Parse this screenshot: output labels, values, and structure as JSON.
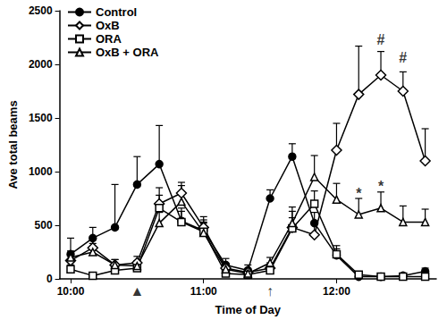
{
  "chart_data": {
    "type": "line",
    "x_label": "Time of Day",
    "y_label": "Ave total beams",
    "x": [
      600,
      610,
      620,
      630,
      640,
      650,
      660,
      670,
      680,
      690,
      700,
      710,
      720,
      730,
      740,
      750,
      760
    ],
    "xlim": [
      595,
      765
    ],
    "xticks": [
      {
        "value": 600,
        "label": "10:00"
      },
      {
        "value": 660,
        "label": "11:00"
      },
      {
        "value": 720,
        "label": "12:00"
      }
    ],
    "ylim": [
      0,
      2500
    ],
    "yticks": [
      0,
      500,
      1000,
      1500,
      2000,
      2500
    ],
    "grid": false,
    "legend": "top-left",
    "series": [
      {
        "name": "Control",
        "color": "#000000",
        "marker": "circle",
        "values": [
          230,
          380,
          480,
          880,
          1070,
          540,
          450,
          130,
          80,
          750,
          1140,
          520,
          220,
          20,
          20,
          30,
          70
        ],
        "errors": [
          150,
          100,
          400,
          260,
          360,
          120,
          100,
          60,
          50,
          80,
          120,
          100,
          60,
          10,
          10,
          20,
          30
        ]
      },
      {
        "name": "OxB",
        "color": "#000000",
        "marker": "diamond_open",
        "values": [
          170,
          290,
          130,
          150,
          700,
          800,
          480,
          100,
          60,
          100,
          480,
          410,
          1200,
          1720,
          1900,
          1750,
          1100
        ],
        "errors": [
          60,
          100,
          50,
          60,
          150,
          100,
          100,
          40,
          30,
          50,
          150,
          100,
          250,
          450,
          220,
          180,
          300
        ]
      },
      {
        "name": "ORA",
        "color": "#000000",
        "marker": "square_open",
        "values": [
          90,
          30,
          80,
          100,
          660,
          530,
          440,
          50,
          40,
          80,
          470,
          700,
          230,
          40,
          20,
          20,
          20
        ],
        "errors": [
          40,
          20,
          40,
          50,
          120,
          100,
          80,
          30,
          20,
          40,
          100,
          120,
          80,
          20,
          10,
          10,
          10
        ]
      },
      {
        "name": "OxB + ORA",
        "color": "#000000",
        "marker": "triangle_open",
        "values": [
          200,
          250,
          130,
          120,
          520,
          720,
          430,
          90,
          50,
          150,
          520,
          950,
          740,
          600,
          660,
          530,
          530
        ],
        "errors": [
          60,
          80,
          50,
          50,
          100,
          150,
          100,
          50,
          30,
          50,
          150,
          200,
          150,
          150,
          150,
          150,
          120
        ]
      }
    ],
    "annotations": [
      {
        "text": "▲",
        "x": 630,
        "y": -110
      },
      {
        "text": "↑",
        "x": 690,
        "y": -110
      },
      {
        "text": "#",
        "x": 740,
        "y": 2230
      },
      {
        "text": "#",
        "x": 750,
        "y": 2060
      },
      {
        "text": "*",
        "x": 730,
        "y": 800
      },
      {
        "text": "*",
        "x": 740,
        "y": 860
      }
    ]
  }
}
